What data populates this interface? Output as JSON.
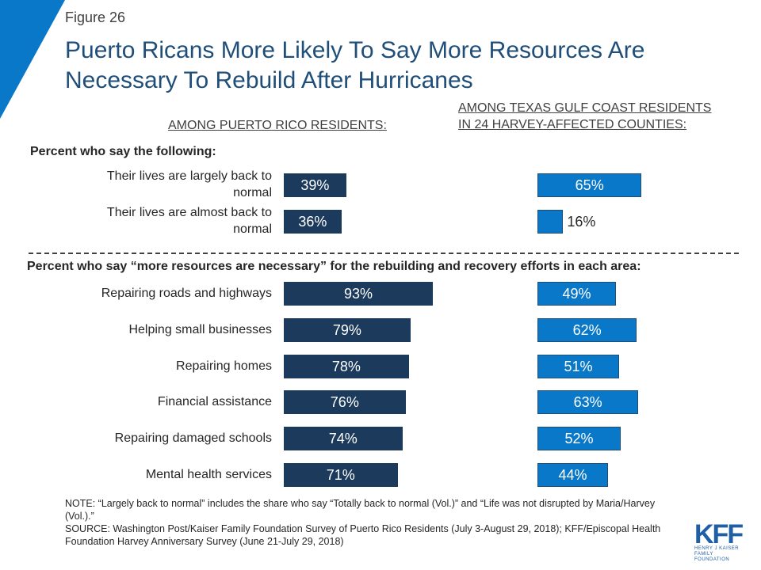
{
  "figure_label": "Figure 26",
  "title": "Puerto Ricans More Likely To Say More Resources Are Necessary To Rebuild After Hurricanes",
  "column_headers": {
    "puerto_rico": "AMONG PUERTO RICO RESIDENTS:",
    "texas_line1": "AMONG TEXAS GULF COAST RESIDENTS",
    "texas_line2": "IN 24 HARVEY-AFFECTED COUNTIES:"
  },
  "colors": {
    "title": "#1f4e79",
    "puerto_rico": "#1b3a5c",
    "texas": "#0a78c8",
    "corner": "#0a78c8"
  },
  "chart_data": {
    "type": "bar",
    "orientation": "horizontal",
    "grid": false,
    "legend": "none",
    "xlim": [
      0,
      100
    ],
    "series_names": [
      "AMONG PUERTO RICO RESIDENTS:",
      "AMONG TEXAS GULF COAST RESIDENTS IN 24 HARVEY-AFFECTED COUNTIES:"
    ],
    "sections": [
      {
        "label": "Percent who say the following:",
        "categories": [
          [
            "Their lives are largely back to",
            "normal"
          ],
          [
            "Their lives are almost back to",
            "normal"
          ]
        ],
        "puerto_rico": [
          39,
          36
        ],
        "texas": [
          65,
          16
        ]
      },
      {
        "label": "Percent who say “more resources are necessary” for the rebuilding and recovery efforts in each area:",
        "categories": [
          [
            "Repairing roads and highways"
          ],
          [
            "Helping small businesses"
          ],
          [
            "Repairing homes"
          ],
          [
            "Financial assistance"
          ],
          [
            "Repairing damaged schools"
          ],
          [
            "Mental health services"
          ]
        ],
        "puerto_rico": [
          93,
          79,
          78,
          76,
          74,
          71
        ],
        "texas": [
          49,
          62,
          51,
          63,
          52,
          44
        ]
      }
    ]
  },
  "notes": [
    "NOTE: “Largely back to normal” includes the share who say “Totally back to normal (Vol.)” and “Life was not disrupted by Maria/Harvey  (Vol.).”",
    "SOURCE: Washington Post/Kaiser Family Foundation Survey of Puerto Rico Residents (July 3-August 29, 2018); KFF/Episcopal Health Foundation Harvey Anniversary Survey (June 21-July 29, 2018)"
  ],
  "logo": {
    "main": "KFF",
    "sub_line1": "HENRY J KAISER",
    "sub_line2": "FAMILY FOUNDATION"
  }
}
